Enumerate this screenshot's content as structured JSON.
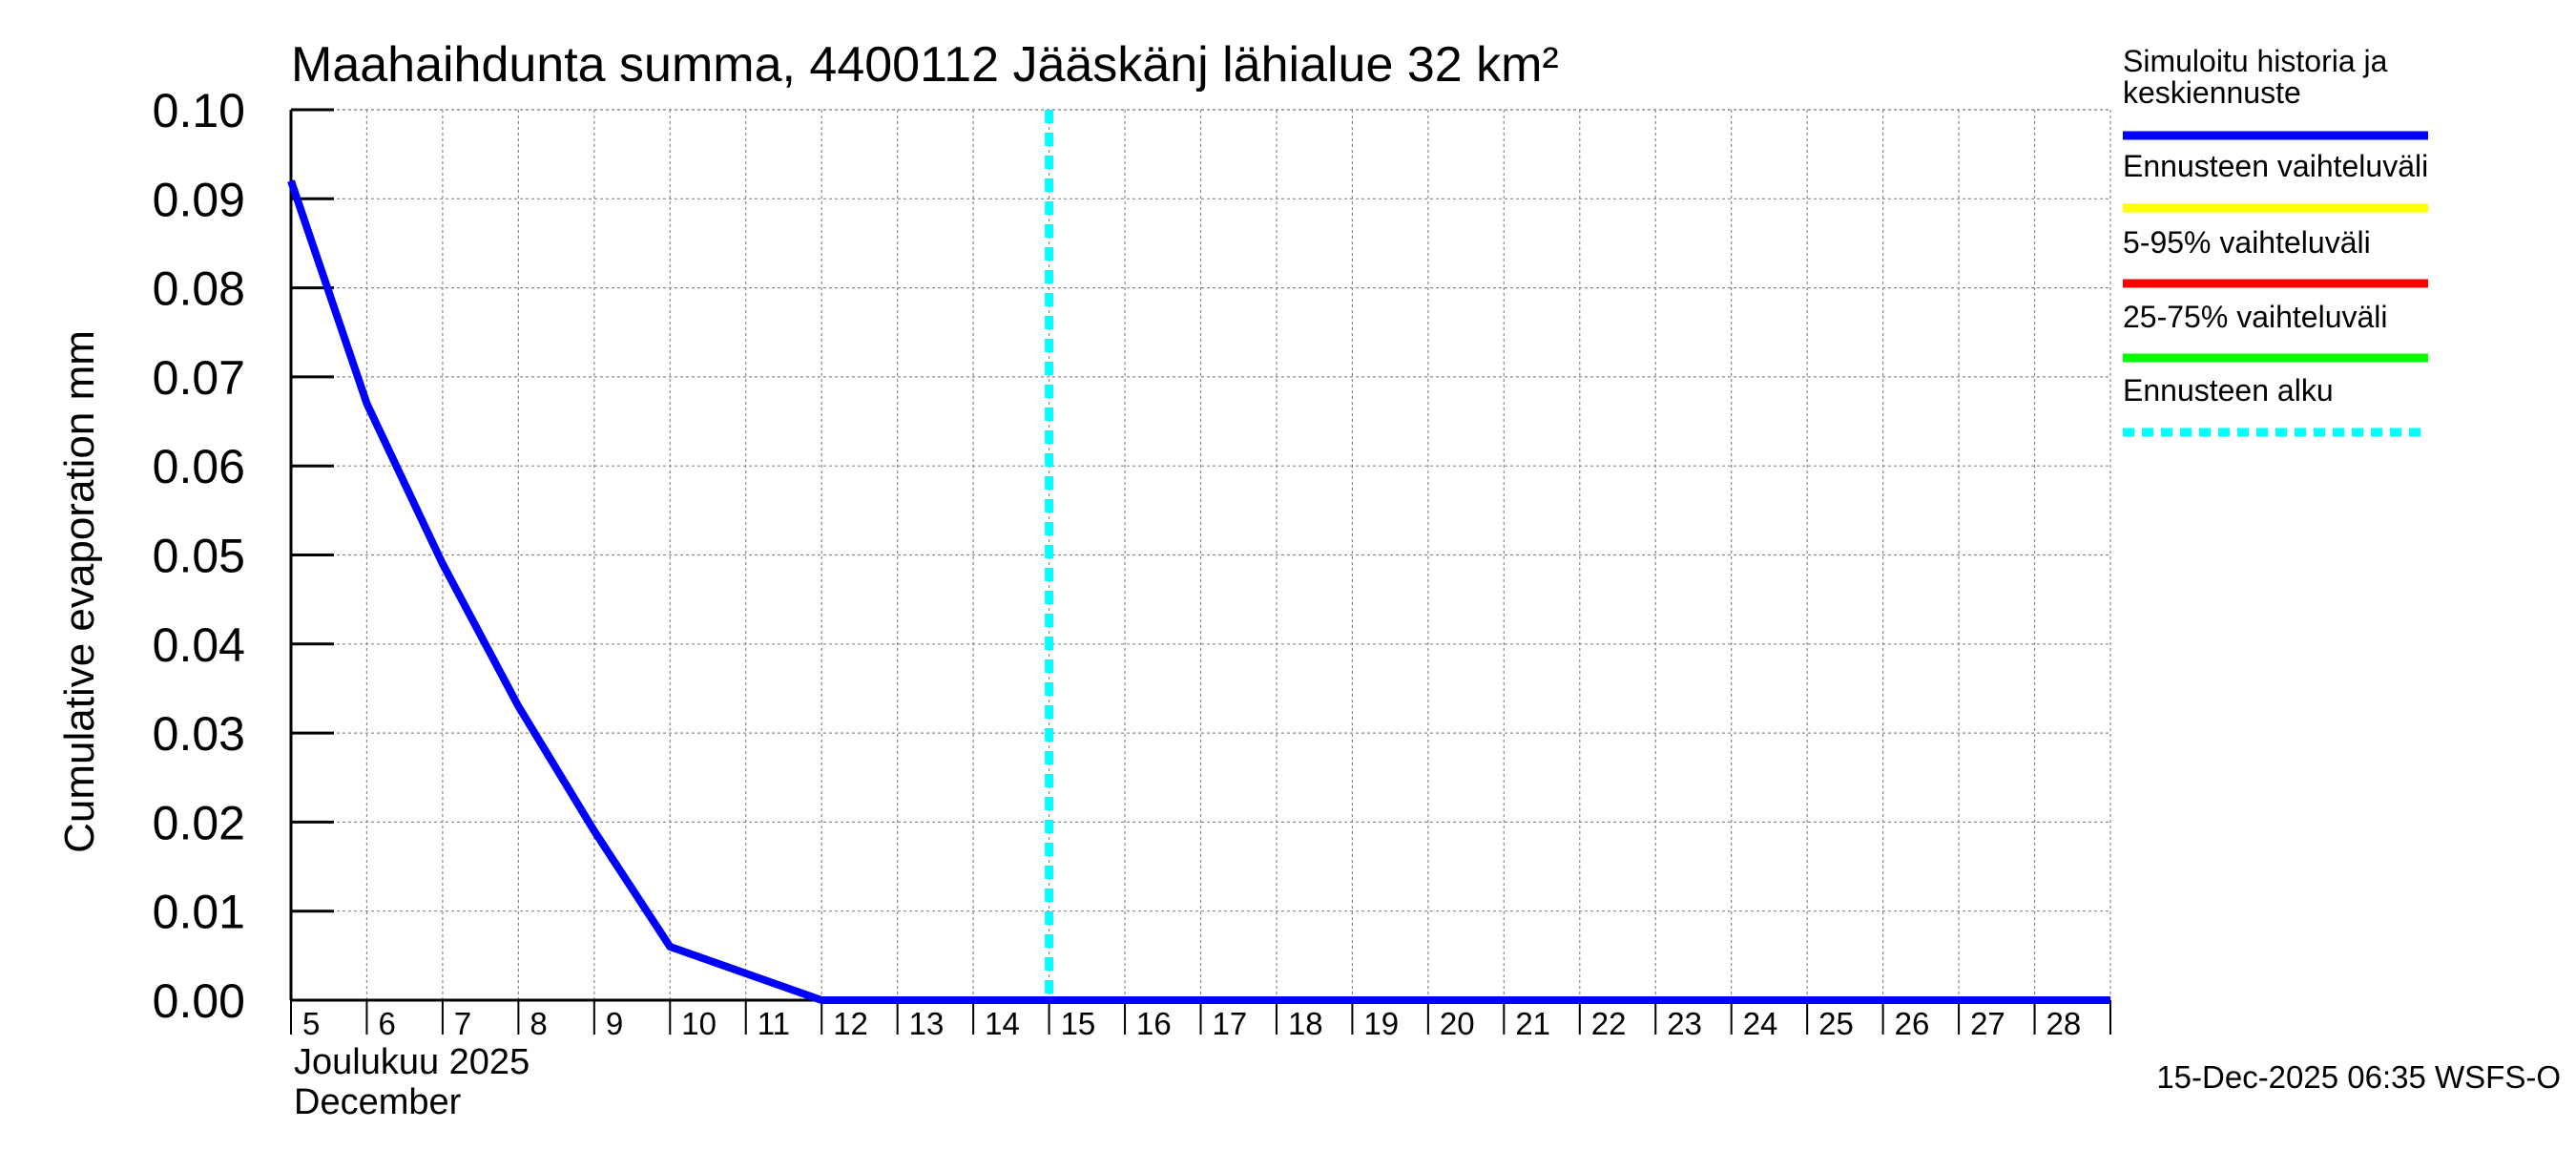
{
  "chart_data": {
    "type": "line",
    "title": "Maahaihdunta summa, 4400112 Jääskänj lähialue 32 km²",
    "ylabel": "Cumulative evaporation   mm",
    "xlabel_lines": [
      "Joulukuu  2025",
      "December"
    ],
    "ylim": [
      0,
      0.1
    ],
    "yticks": [
      "0.00",
      "0.01",
      "0.02",
      "0.03",
      "0.04",
      "0.05",
      "0.06",
      "0.07",
      "0.08",
      "0.09",
      "0.10"
    ],
    "xlim": [
      "2025-12-05",
      "2025-12-29"
    ],
    "xticks": [
      "5",
      "6",
      "7",
      "8",
      "9",
      "10",
      "11",
      "12",
      "13",
      "14",
      "15",
      "16",
      "17",
      "18",
      "19",
      "20",
      "21",
      "22",
      "23",
      "24",
      "25",
      "26",
      "27",
      "28"
    ],
    "grid": true,
    "legend_position": "right",
    "forecast_start": "2025-12-15",
    "series": [
      {
        "name": "Simuloitu historia ja keskiennuste",
        "color": "#0000ff",
        "x": [
          "2025-12-05",
          "2025-12-06",
          "2025-12-07",
          "2025-12-08",
          "2025-12-09",
          "2025-12-10",
          "2025-12-11",
          "2025-12-12",
          "2025-12-13",
          "2025-12-14",
          "2025-12-15",
          "2025-12-16",
          "2025-12-17",
          "2025-12-18",
          "2025-12-19",
          "2025-12-20",
          "2025-12-21",
          "2025-12-22",
          "2025-12-23",
          "2025-12-24",
          "2025-12-25",
          "2025-12-26",
          "2025-12-27",
          "2025-12-28",
          "2025-12-29"
        ],
        "values": [
          0.092,
          0.067,
          0.049,
          0.033,
          0.019,
          0.006,
          0.003,
          0.0,
          0.0,
          0.0,
          0.0,
          0.0,
          0.0,
          0.0,
          0.0,
          0.0,
          0.0,
          0.0,
          0.0,
          0.0,
          0.0,
          0.0,
          0.0,
          0.0,
          0.0
        ]
      }
    ],
    "legend": [
      {
        "lines": [
          "Simuloitu historia ja",
          "keskiennuste"
        ],
        "color": "#0000ff",
        "style": "solid"
      },
      {
        "lines": [
          "Ennusteen vaihteluväli"
        ],
        "color": "#ffff00",
        "style": "solid"
      },
      {
        "lines": [
          "5-95% vaihteluväli"
        ],
        "color": "#ff0000",
        "style": "solid"
      },
      {
        "lines": [
          "25-75% vaihteluväli"
        ],
        "color": "#00ff00",
        "style": "solid"
      },
      {
        "lines": [
          "Ennusteen alku"
        ],
        "color": "#00ffff",
        "style": "dashed"
      }
    ],
    "footer": "15-Dec-2025 06:35 WSFS-O"
  }
}
